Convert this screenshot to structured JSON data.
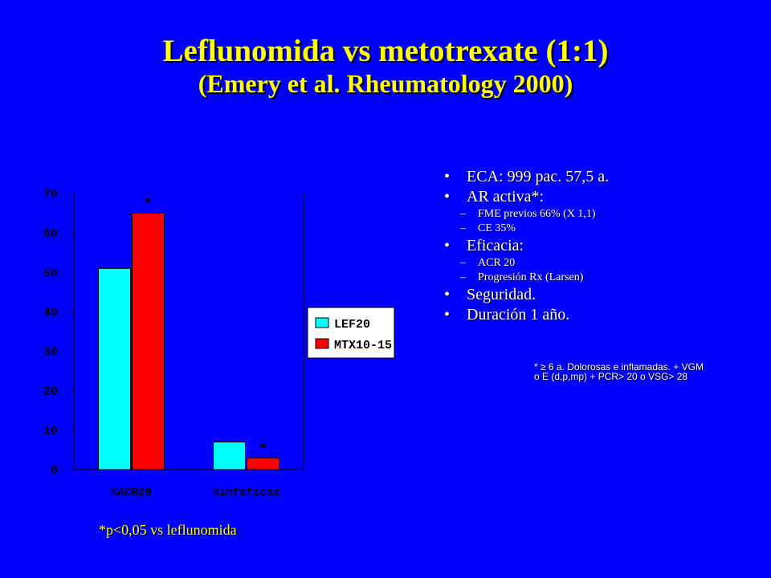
{
  "slide": {
    "title": "Leflunomida vs metotrexate (1:1)",
    "subtitle": "(Emery et al. Rheumatology 2000)",
    "chart_footnote": "*p<0,05 vs leflunomida"
  },
  "bullets": [
    {
      "text": "ECA: 999 pac. 57,5 a.",
      "sub": []
    },
    {
      "text": "AR activa*:",
      "sub": [
        "FME previos 66% (X 1,1)",
        "CE 35%"
      ]
    },
    {
      "text": "Eficacia:",
      "sub": [
        "ACR 20",
        "Progresión Rx (Larsen)"
      ]
    },
    {
      "text": "Seguridad.",
      "sub": []
    },
    {
      "text": "Duración 1 año.",
      "sub": []
    }
  ],
  "note": {
    "line1": "* ≥ 6 a. Dolorosas e inflamadas. + VGM",
    "line2": "o E (d,p,mp) + PCR> 20 o VSG> 28"
  },
  "colors": {
    "background": "#0000ff",
    "title": "#ffff00",
    "lef_series": "#00ffff",
    "mtx_series": "#ff0000",
    "plot_area": "#ffffff"
  },
  "chart_data": {
    "type": "bar",
    "title": "",
    "xlabel": "",
    "ylabel": "",
    "categories": [
      "%ACR20",
      "%infeficaz"
    ],
    "series": [
      {
        "name": "LEF20",
        "values": [
          51,
          7
        ]
      },
      {
        "name": "MTX10-15",
        "values": [
          65,
          3
        ]
      }
    ],
    "ylim": [
      0,
      70
    ],
    "yticks": [
      0,
      10,
      20,
      30,
      40,
      50,
      60,
      70
    ],
    "annotations": [
      "*",
      "*"
    ],
    "grid": false,
    "legend_position": "right"
  }
}
